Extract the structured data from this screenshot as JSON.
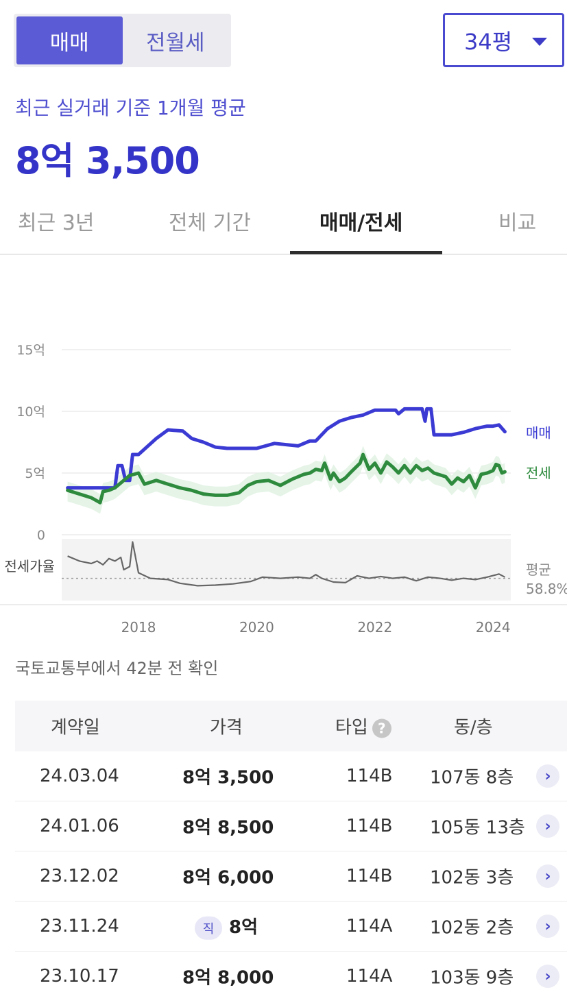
{
  "deal_tabs": {
    "sale": "매매",
    "rent": "전월세"
  },
  "size_select": {
    "value": "34평"
  },
  "summary": {
    "subtitle": "최근 실거래 기준 1개월 평균",
    "price": "8억 3,500"
  },
  "period_tabs": [
    "최근 3년",
    "전체 기간",
    "매매/전세",
    "비교"
  ],
  "colors": {
    "accent": "#3b3bd4",
    "jeonse": "#2e8b3e",
    "ratio": "#666666"
  },
  "chart_data": {
    "type": "line",
    "y_ticks": [
      "15억",
      "10억",
      "5억",
      "0"
    ],
    "x_ticks": [
      "2018",
      "2020",
      "2022",
      "2024"
    ],
    "ylim": [
      0,
      15
    ],
    "xlim": [
      2016.7,
      2024.3
    ],
    "series": [
      {
        "name": "매매",
        "color": "#3b3bd4",
        "points": [
          [
            2016.8,
            3.8
          ],
          [
            2017.5,
            3.8
          ],
          [
            2017.6,
            3.8
          ],
          [
            2017.65,
            5.6
          ],
          [
            2017.72,
            5.6
          ],
          [
            2017.78,
            4.4
          ],
          [
            2017.85,
            4.4
          ],
          [
            2017.9,
            6.5
          ],
          [
            2018.0,
            6.5
          ],
          [
            2018.3,
            7.8
          ],
          [
            2018.5,
            8.5
          ],
          [
            2018.75,
            8.4
          ],
          [
            2018.9,
            7.8
          ],
          [
            2019.1,
            7.5
          ],
          [
            2019.3,
            7.1
          ],
          [
            2019.5,
            7.0
          ],
          [
            2019.8,
            7.0
          ],
          [
            2020.0,
            7.0
          ],
          [
            2020.3,
            7.4
          ],
          [
            2020.5,
            7.3
          ],
          [
            2020.7,
            7.2
          ],
          [
            2020.9,
            7.6
          ],
          [
            2021.0,
            7.6
          ],
          [
            2021.2,
            8.6
          ],
          [
            2021.4,
            9.2
          ],
          [
            2021.6,
            9.5
          ],
          [
            2021.8,
            9.7
          ],
          [
            2022.0,
            10.1
          ],
          [
            2022.2,
            10.1
          ],
          [
            2022.35,
            10.1
          ],
          [
            2022.4,
            9.8
          ],
          [
            2022.5,
            10.2
          ],
          [
            2022.8,
            10.2
          ],
          [
            2022.85,
            9.2
          ],
          [
            2022.88,
            10.2
          ],
          [
            2022.95,
            10.2
          ],
          [
            2023.0,
            8.1
          ],
          [
            2023.3,
            8.1
          ],
          [
            2023.5,
            8.3
          ],
          [
            2023.7,
            8.6
          ],
          [
            2023.9,
            8.8
          ],
          [
            2024.0,
            8.8
          ],
          [
            2024.1,
            8.9
          ],
          [
            2024.2,
            8.35
          ]
        ]
      },
      {
        "name": "전세",
        "color": "#2e8b3e",
        "points": [
          [
            2016.8,
            3.6
          ],
          [
            2017.0,
            3.3
          ],
          [
            2017.2,
            3.0
          ],
          [
            2017.35,
            2.6
          ],
          [
            2017.4,
            3.5
          ],
          [
            2017.5,
            3.6
          ],
          [
            2017.6,
            3.8
          ],
          [
            2017.7,
            4.2
          ],
          [
            2017.85,
            4.8
          ],
          [
            2018.0,
            5.0
          ],
          [
            2018.1,
            4.1
          ],
          [
            2018.3,
            4.4
          ],
          [
            2018.5,
            4.1
          ],
          [
            2018.7,
            3.8
          ],
          [
            2018.9,
            3.6
          ],
          [
            2019.1,
            3.3
          ],
          [
            2019.3,
            3.2
          ],
          [
            2019.5,
            3.2
          ],
          [
            2019.7,
            3.4
          ],
          [
            2019.85,
            4.0
          ],
          [
            2020.0,
            4.3
          ],
          [
            2020.2,
            4.4
          ],
          [
            2020.4,
            4.0
          ],
          [
            2020.6,
            4.5
          ],
          [
            2020.8,
            4.9
          ],
          [
            2020.9,
            5.0
          ],
          [
            2021.0,
            5.3
          ],
          [
            2021.1,
            5.2
          ],
          [
            2021.15,
            5.8
          ],
          [
            2021.25,
            4.5
          ],
          [
            2021.3,
            5.0
          ],
          [
            2021.4,
            4.3
          ],
          [
            2021.5,
            4.6
          ],
          [
            2021.6,
            5.1
          ],
          [
            2021.75,
            5.8
          ],
          [
            2021.8,
            6.5
          ],
          [
            2021.9,
            5.3
          ],
          [
            2022.0,
            5.8
          ],
          [
            2022.1,
            5.0
          ],
          [
            2022.2,
            5.9
          ],
          [
            2022.3,
            5.5
          ],
          [
            2022.4,
            5.0
          ],
          [
            2022.5,
            5.6
          ],
          [
            2022.6,
            5.0
          ],
          [
            2022.7,
            5.6
          ],
          [
            2022.8,
            5.2
          ],
          [
            2022.9,
            5.4
          ],
          [
            2023.0,
            5.0
          ],
          [
            2023.2,
            4.7
          ],
          [
            2023.3,
            4.1
          ],
          [
            2023.4,
            4.6
          ],
          [
            2023.5,
            4.3
          ],
          [
            2023.6,
            4.8
          ],
          [
            2023.7,
            3.8
          ],
          [
            2023.8,
            4.9
          ],
          [
            2023.9,
            5.0
          ],
          [
            2024.0,
            5.2
          ],
          [
            2024.05,
            5.7
          ],
          [
            2024.1,
            5.6
          ],
          [
            2024.15,
            5.0
          ],
          [
            2024.2,
            5.1
          ]
        ]
      }
    ],
    "ratio_label": "전세가율",
    "ratio_avg_label": "평균",
    "ratio_avg_value": "58.8%",
    "ratio_points": [
      [
        2016.8,
        0.72
      ],
      [
        2017.0,
        0.64
      ],
      [
        2017.2,
        0.6
      ],
      [
        2017.3,
        0.64
      ],
      [
        2017.4,
        0.58
      ],
      [
        2017.5,
        0.68
      ],
      [
        2017.6,
        0.64
      ],
      [
        2017.7,
        0.7
      ],
      [
        2017.75,
        0.5
      ],
      [
        2017.85,
        0.55
      ],
      [
        2017.9,
        0.95
      ],
      [
        2018.0,
        0.45
      ],
      [
        2018.2,
        0.36
      ],
      [
        2018.5,
        0.34
      ],
      [
        2018.7,
        0.28
      ],
      [
        2019.0,
        0.24
      ],
      [
        2019.3,
        0.25
      ],
      [
        2019.6,
        0.27
      ],
      [
        2019.9,
        0.31
      ],
      [
        2020.1,
        0.38
      ],
      [
        2020.4,
        0.36
      ],
      [
        2020.7,
        0.38
      ],
      [
        2020.9,
        0.36
      ],
      [
        2021.0,
        0.42
      ],
      [
        2021.1,
        0.36
      ],
      [
        2021.3,
        0.3
      ],
      [
        2021.5,
        0.29
      ],
      [
        2021.7,
        0.4
      ],
      [
        2021.9,
        0.36
      ],
      [
        2022.1,
        0.39
      ],
      [
        2022.3,
        0.36
      ],
      [
        2022.5,
        0.38
      ],
      [
        2022.7,
        0.32
      ],
      [
        2022.9,
        0.38
      ],
      [
        2023.1,
        0.36
      ],
      [
        2023.3,
        0.33
      ],
      [
        2023.5,
        0.36
      ],
      [
        2023.7,
        0.34
      ],
      [
        2023.9,
        0.38
      ],
      [
        2024.1,
        0.43
      ],
      [
        2024.2,
        0.38
      ]
    ]
  },
  "source_note": "국토교통부에서 42분 전 확인",
  "table": {
    "headers": {
      "date": "계약일",
      "price": "가격",
      "type": "타입",
      "unit": "동/층"
    },
    "help_icon": "?",
    "rows": [
      {
        "date": "24.03.04",
        "price": "8억 3,500",
        "type": "114B",
        "unit": "107동 8층"
      },
      {
        "date": "24.01.06",
        "price": "8억 8,500",
        "type": "114B",
        "unit": "105동 13층"
      },
      {
        "date": "23.12.02",
        "price": "8억 6,000",
        "type": "114B",
        "unit": "102동 3층"
      },
      {
        "date": "23.11.24",
        "badge": "직",
        "price": "8억",
        "type": "114A",
        "unit": "102동 2층"
      },
      {
        "date": "23.10.17",
        "price": "8억 8,000",
        "type": "114A",
        "unit": "103동 9층"
      }
    ]
  }
}
